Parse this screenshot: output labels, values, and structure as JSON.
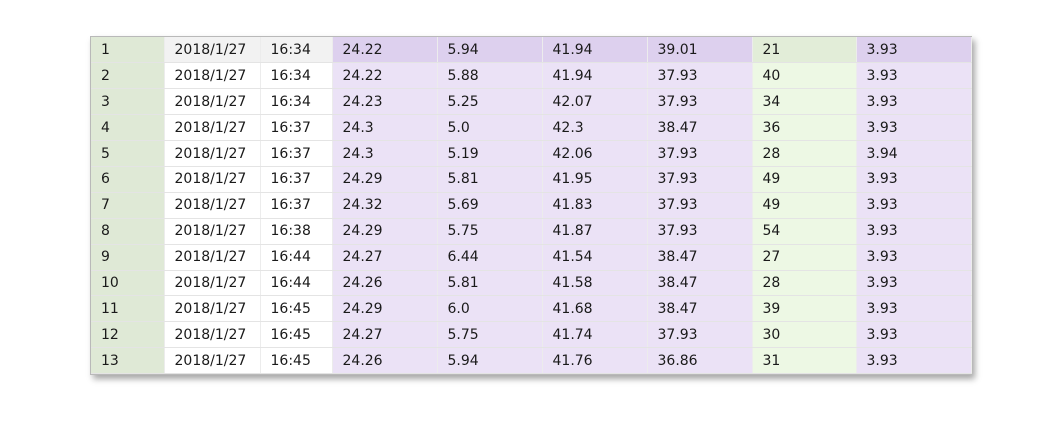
{
  "colors": {
    "index_bg": "#dfe9d6",
    "purple_bg": "#ebe2f6",
    "green_bg": "#edf8e4",
    "white_bg": "#ffffff"
  },
  "rows": [
    {
      "idx": "1",
      "date": "2018/1/27",
      "time": "16:34",
      "a": "24.22",
      "b": "5.94",
      "c": "41.94",
      "d": "39.01",
      "e": "21",
      "f": "3.93"
    },
    {
      "idx": "2",
      "date": "2018/1/27",
      "time": "16:34",
      "a": "24.22",
      "b": "5.88",
      "c": "41.94",
      "d": "37.93",
      "e": "40",
      "f": "3.93"
    },
    {
      "idx": "3",
      "date": "2018/1/27",
      "time": "16:34",
      "a": "24.23",
      "b": "5.25",
      "c": "42.07",
      "d": "37.93",
      "e": "34",
      "f": "3.93"
    },
    {
      "idx": "4",
      "date": "2018/1/27",
      "time": "16:37",
      "a": "24.3",
      "b": "5.0",
      "c": "42.3",
      "d": "38.47",
      "e": "36",
      "f": "3.93"
    },
    {
      "idx": "5",
      "date": "2018/1/27",
      "time": "16:37",
      "a": "24.3",
      "b": "5.19",
      "c": "42.06",
      "d": "37.93",
      "e": "28",
      "f": "3.94"
    },
    {
      "idx": "6",
      "date": "2018/1/27",
      "time": "16:37",
      "a": "24.29",
      "b": "5.81",
      "c": "41.95",
      "d": "37.93",
      "e": "49",
      "f": "3.93"
    },
    {
      "idx": "7",
      "date": "2018/1/27",
      "time": "16:37",
      "a": "24.32",
      "b": "5.69",
      "c": "41.83",
      "d": "37.93",
      "e": "49",
      "f": "3.93"
    },
    {
      "idx": "8",
      "date": "2018/1/27",
      "time": "16:38",
      "a": "24.29",
      "b": "5.75",
      "c": "41.87",
      "d": "37.93",
      "e": "54",
      "f": "3.93"
    },
    {
      "idx": "9",
      "date": "2018/1/27",
      "time": "16:44",
      "a": "24.27",
      "b": "6.44",
      "c": "41.54",
      "d": "38.47",
      "e": "27",
      "f": "3.93"
    },
    {
      "idx": "10",
      "date": "2018/1/27",
      "time": "16:44",
      "a": "24.26",
      "b": "5.81",
      "c": "41.58",
      "d": "38.47",
      "e": "28",
      "f": "3.93"
    },
    {
      "idx": "11",
      "date": "2018/1/27",
      "time": "16:45",
      "a": "24.29",
      "b": "6.0",
      "c": "41.68",
      "d": "38.47",
      "e": "39",
      "f": "3.93"
    },
    {
      "idx": "12",
      "date": "2018/1/27",
      "time": "16:45",
      "a": "24.27",
      "b": "5.75",
      "c": "41.74",
      "d": "37.93",
      "e": "30",
      "f": "3.93"
    },
    {
      "idx": "13",
      "date": "2018/1/27",
      "time": "16:45",
      "a": "24.26",
      "b": "5.94",
      "c": "41.76",
      "d": "36.86",
      "e": "31",
      "f": "3.93"
    }
  ]
}
